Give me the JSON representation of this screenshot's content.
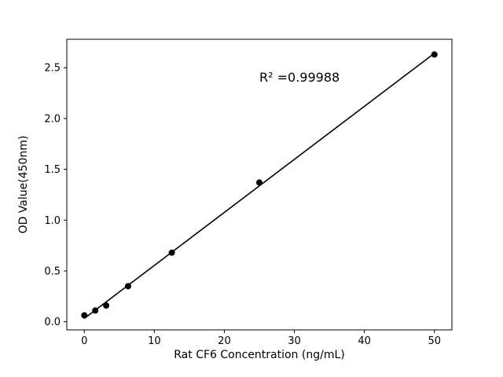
{
  "chart_data": {
    "type": "scatter",
    "title": "",
    "xlabel": "Rat CF6 Concentration (ng/mL)",
    "ylabel": "OD Value(450nm)",
    "x": [
      0,
      1.56,
      3.12,
      6.25,
      12.5,
      25,
      50
    ],
    "y": [
      0.063,
      0.11,
      0.16,
      0.35,
      0.68,
      1.37,
      2.63
    ],
    "fit_line": true,
    "annotation": {
      "text": "R² =0.99988",
      "x": 25,
      "y": 2.38
    },
    "xlim": [
      -2.5,
      52.5
    ],
    "ylim": [
      -0.08,
      2.78
    ],
    "xticks": [
      "0",
      "10",
      "20",
      "30",
      "40",
      "50"
    ],
    "yticks": [
      "0.0",
      "0.5",
      "1.0",
      "1.5",
      "2.0",
      "2.5"
    ],
    "grid": false,
    "legend": "none",
    "marker_color": "#000000",
    "line_color": "#000000",
    "background_color": "#ffffff"
  }
}
